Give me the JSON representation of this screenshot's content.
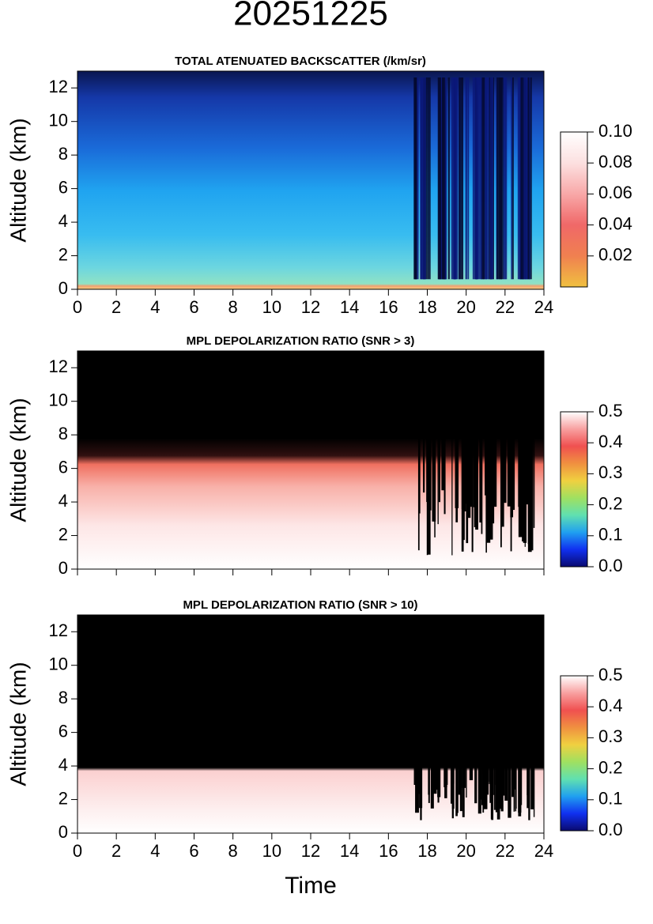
{
  "title": "20251225",
  "chart_data": [
    {
      "type": "heatmap",
      "title": "TOTAL ATENUATED BACKSCATTER (/km/sr)",
      "ylabel": "Altitude (km)",
      "xlim": [
        0,
        24
      ],
      "xticks": [
        0,
        2,
        4,
        6,
        8,
        10,
        12,
        14,
        16,
        18,
        20,
        22,
        24
      ],
      "show_xticklabels": true,
      "ylim": [
        0,
        13
      ],
      "yticks": [
        0,
        2,
        4,
        6,
        8,
        10,
        12
      ],
      "colorbar": {
        "lim": [
          0,
          0.1
        ],
        "ticks": [
          0.02,
          0.04,
          0.06,
          0.08,
          {
            "value": 0.1,
            "label": "0.10"
          }
        ],
        "colors": [
          "#f0c040",
          "#f08050",
          "#f06868",
          "#f8a8a8",
          "#fce0e0",
          "#ffffff"
        ]
      }
    },
    {
      "type": "heatmap",
      "title": "MPL DEPOLARIZATION RATIO (SNR > 3)",
      "ylabel": "Altitude (km)",
      "xlim": [
        0,
        24
      ],
      "xticks": [
        0,
        2,
        4,
        6,
        8,
        10,
        12,
        14,
        16,
        18,
        20,
        22,
        24
      ],
      "show_xticklabels": false,
      "ylim": [
        0,
        13
      ],
      "yticks": [
        0,
        2,
        4,
        6,
        8,
        10,
        12
      ],
      "colorbar": {
        "lim": [
          0,
          0.5
        ],
        "ticks": [
          {
            "value": 0,
            "label": "0.0"
          },
          0.1,
          0.2,
          0.3,
          0.4,
          0.5
        ],
        "colors": [
          "#0a0a70",
          "#1030f0",
          "#20a0f0",
          "#60e0b0",
          "#a0e060",
          "#f0d040",
          "#f09040",
          "#f05050",
          "#f8a0a0",
          "#ffffff"
        ]
      }
    },
    {
      "type": "heatmap",
      "title": "MPL DEPOLARIZATION RATIO (SNR > 10)",
      "ylabel": "Altitude (km)",
      "xlabel": "Time",
      "xlim": [
        0,
        24
      ],
      "xticks": [
        0,
        2,
        4,
        6,
        8,
        10,
        12,
        14,
        16,
        18,
        20,
        22,
        24
      ],
      "show_xticklabels": true,
      "ylim": [
        0,
        13
      ],
      "yticks": [
        0,
        2,
        4,
        6,
        8,
        10,
        12
      ],
      "colorbar": {
        "lim": [
          0,
          0.5
        ],
        "ticks": [
          {
            "value": 0,
            "label": "0.0"
          },
          0.1,
          0.2,
          0.3,
          0.4,
          0.5
        ],
        "colors": [
          "#0a0a70",
          "#1030f0",
          "#20a0f0",
          "#60e0b0",
          "#a0e060",
          "#f0d040",
          "#f09040",
          "#f05050",
          "#f8a0a0",
          "#ffffff"
        ]
      }
    }
  ]
}
